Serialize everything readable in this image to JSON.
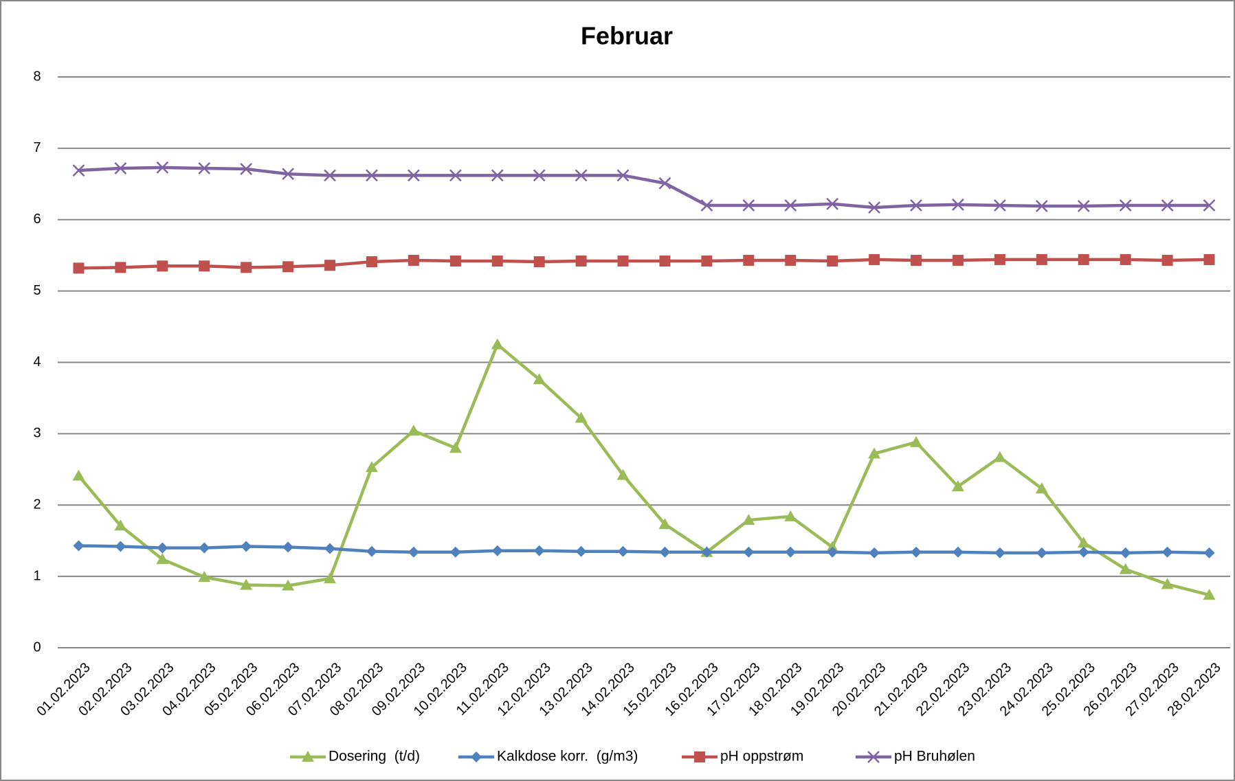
{
  "chart_data": {
    "type": "line",
    "title": "Februar",
    "categories": [
      "01.02.2023",
      "02.02.2023",
      "03.02.2023",
      "04.02.2023",
      "05.02.2023",
      "06.02.2023",
      "07.02.2023",
      "08.02.2023",
      "09.02.2023",
      "10.02.2023",
      "11.02.2023",
      "12.02.2023",
      "13.02.2023",
      "14.02.2023",
      "15.02.2023",
      "16.02.2023",
      "17.02.2023",
      "18.02.2023",
      "19.02.2023",
      "20.02.2023",
      "21.02.2023",
      "22.02.2023",
      "23.02.2023",
      "24.02.2023",
      "25.02.2023",
      "26.02.2023",
      "27.02.2023",
      "28.02.2023"
    ],
    "series": [
      {
        "name": "Dosering  (t/d)",
        "color": "#9bbb59",
        "marker": "triangle",
        "values": [
          2.41,
          1.71,
          1.24,
          0.99,
          0.88,
          0.87,
          0.97,
          2.53,
          3.04,
          2.8,
          4.25,
          3.76,
          3.22,
          2.42,
          1.73,
          1.34,
          1.79,
          1.84,
          1.41,
          2.72,
          2.88,
          2.26,
          2.67,
          2.23,
          1.47,
          1.1,
          0.89,
          0.74
        ]
      },
      {
        "name": "Kalkdose korr.  (g/m3)",
        "color": "#4f81bd",
        "marker": "diamond",
        "values": [
          1.43,
          1.42,
          1.4,
          1.4,
          1.42,
          1.41,
          1.39,
          1.35,
          1.34,
          1.34,
          1.36,
          1.36,
          1.35,
          1.35,
          1.34,
          1.34,
          1.34,
          1.34,
          1.34,
          1.33,
          1.34,
          1.34,
          1.33,
          1.33,
          1.34,
          1.33,
          1.34,
          1.33
        ]
      },
      {
        "name": "pH oppstrøm",
        "color": "#c0504d",
        "marker": "square",
        "values": [
          5.32,
          5.33,
          5.35,
          5.35,
          5.33,
          5.34,
          5.36,
          5.41,
          5.43,
          5.42,
          5.42,
          5.41,
          5.42,
          5.42,
          5.42,
          5.42,
          5.43,
          5.43,
          5.42,
          5.44,
          5.43,
          5.43,
          5.44,
          5.44,
          5.44,
          5.44,
          5.43,
          5.44
        ]
      },
      {
        "name": "pH Bruhølen",
        "color": "#8064a2",
        "marker": "x",
        "values": [
          6.69,
          6.72,
          6.73,
          6.72,
          6.71,
          6.64,
          6.62,
          6.62,
          6.62,
          6.62,
          6.62,
          6.62,
          6.62,
          6.62,
          6.51,
          6.2,
          6.2,
          6.2,
          6.22,
          6.17,
          6.2,
          6.21,
          6.2,
          6.19,
          6.19,
          6.2,
          6.2,
          6.2
        ]
      }
    ],
    "ylim": [
      0,
      8
    ],
    "yticks": [
      0,
      1,
      2,
      3,
      4,
      5,
      6,
      7,
      8
    ],
    "grid": true,
    "legend": "bottom"
  }
}
